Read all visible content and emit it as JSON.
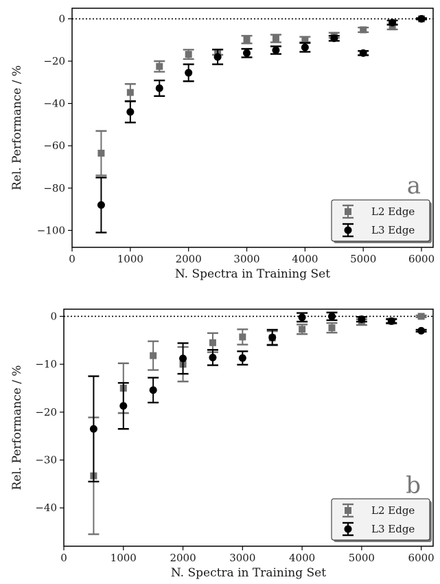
{
  "chart_data": [
    {
      "type": "scatter",
      "panel_label": "a",
      "xlabel": "N. Spectra in Training Set",
      "ylabel": "Rel. Performance / %",
      "xlim": [
        0,
        6200
      ],
      "ylim": [
        -108,
        5
      ],
      "x_ticks": [
        0,
        1000,
        2000,
        3000,
        4000,
        5000,
        6000
      ],
      "y_ticks": [
        0,
        -20,
        -40,
        -60,
        -80,
        -100
      ],
      "reference_line": 0,
      "grid": false,
      "legend": "lower-right",
      "series": [
        {
          "name": "L2 Edge",
          "color": "#707070",
          "marker": "square",
          "x": [
            500,
            1000,
            1500,
            2000,
            2500,
            3000,
            3500,
            4000,
            4500,
            5000,
            5500,
            6000
          ],
          "y": [
            -63.5,
            -34.8,
            -22.5,
            -16.8,
            -15.8,
            -9.8,
            -9.3,
            -9.8,
            -7.8,
            -5.2,
            -3.8,
            0
          ],
          "err": [
            10.5,
            4,
            2.5,
            2.2,
            1.2,
            1.8,
            1.8,
            1.3,
            1.2,
            1.1,
            1.2,
            0.3
          ]
        },
        {
          "name": "L3 Edge",
          "color": "#000000",
          "marker": "circle",
          "x": [
            500,
            1000,
            1500,
            2000,
            2500,
            3000,
            3500,
            4000,
            4500,
            5000,
            5500,
            6000
          ],
          "y": [
            -88,
            -44,
            -32.8,
            -25.5,
            -18,
            -16.2,
            -14.8,
            -13.5,
            -9.2,
            -16.2,
            -1.8,
            0
          ],
          "err": [
            13,
            5,
            3.7,
            4,
            3.5,
            2,
            1.8,
            2.1,
            1.2,
            1.0,
            1.0,
            0.3
          ]
        }
      ]
    },
    {
      "type": "scatter",
      "panel_label": "b",
      "xlabel": "N. Spectra in Training Set",
      "ylabel": "Rel. Performance / %",
      "xlim": [
        0,
        6200
      ],
      "ylim": [
        -48,
        1.5
      ],
      "x_ticks": [
        0,
        1000,
        2000,
        3000,
        4000,
        5000,
        6000
      ],
      "y_ticks": [
        0,
        -10,
        -20,
        -30,
        -40
      ],
      "reference_line": 0,
      "grid": false,
      "legend": "lower-right",
      "series": [
        {
          "name": "L2 Edge",
          "color": "#707070",
          "marker": "square",
          "x": [
            500,
            1000,
            1500,
            2000,
            2500,
            3000,
            3500,
            4000,
            4500,
            5000,
            5500,
            6000
          ],
          "y": [
            -33.3,
            -15,
            -8.2,
            -10,
            -5.5,
            -4.3,
            -4.5,
            -2.7,
            -2.4,
            -1.2,
            -1.0,
            0
          ],
          "err": [
            12.2,
            5.2,
            3,
            3.6,
            2,
            1.6,
            1.4,
            1.0,
            1.0,
            0.6,
            0.5,
            0.2
          ]
        },
        {
          "name": "L3 Edge",
          "color": "#000000",
          "marker": "circle",
          "x": [
            500,
            1000,
            1500,
            2000,
            2500,
            3000,
            3500,
            4000,
            4500,
            5000,
            5500,
            6000
          ],
          "y": [
            -23.5,
            -18.7,
            -15.4,
            -8.8,
            -8.6,
            -8.7,
            -4.4,
            -0.2,
            0,
            -0.6,
            -1.0,
            -3.0
          ],
          "err": [
            11,
            4.8,
            2.6,
            3.2,
            1.6,
            1.4,
            1.6,
            0.9,
            0.8,
            0.5,
            0.4,
            0.2
          ]
        }
      ]
    }
  ]
}
